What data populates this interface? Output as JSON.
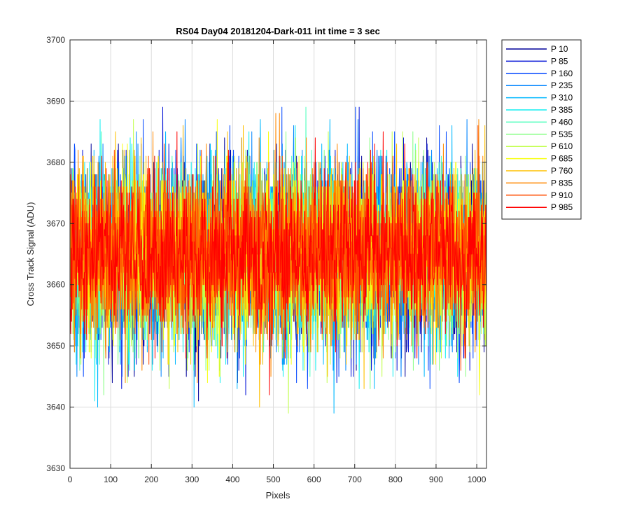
{
  "chart_data": {
    "type": "line",
    "title": "RS04 Day04 20181204-Dark-011 int time = 3 sec",
    "xlabel": "Pixels",
    "ylabel": "Cross Track Signal (ADU)",
    "xlim": [
      0,
      1024
    ],
    "ylim": [
      3630,
      3700
    ],
    "xticks": [
      0,
      100,
      200,
      300,
      400,
      500,
      600,
      700,
      800,
      900,
      1000
    ],
    "yticks": [
      3630,
      3640,
      3650,
      3660,
      3670,
      3680,
      3690,
      3700
    ],
    "grid": true,
    "legend_position": "outside-right",
    "x_points": 1024,
    "series": [
      {
        "name": "P 10",
        "color": "#00009a",
        "mean": 3665,
        "sd": 7.5
      },
      {
        "name": "P 85",
        "color": "#0010d6",
        "mean": 3665,
        "sd": 7.5
      },
      {
        "name": "P 160",
        "color": "#0046ff",
        "mean": 3665,
        "sd": 7.5
      },
      {
        "name": "P 235",
        "color": "#0084ff",
        "mean": 3665,
        "sd": 7.5
      },
      {
        "name": "P 310",
        "color": "#00b8ff",
        "mean": 3665,
        "sd": 7.5
      },
      {
        "name": "P 385",
        "color": "#12eef0",
        "mean": 3665,
        "sd": 7.5
      },
      {
        "name": "P 460",
        "color": "#4dffbc",
        "mean": 3665,
        "sd": 7.0
      },
      {
        "name": "P 535",
        "color": "#87ff84",
        "mean": 3665,
        "sd": 7.0
      },
      {
        "name": "P 610",
        "color": "#c1ff4c",
        "mean": 3665,
        "sd": 7.0
      },
      {
        "name": "P 685",
        "color": "#f8ff12",
        "mean": 3665,
        "sd": 7.0
      },
      {
        "name": "P 760",
        "color": "#ffc000",
        "mean": 3665,
        "sd": 7.0
      },
      {
        "name": "P 835",
        "color": "#ff8800",
        "mean": 3665,
        "sd": 7.0
      },
      {
        "name": "P 910",
        "color": "#ff4c00",
        "mean": 3665,
        "sd": 6.5
      },
      {
        "name": "P 985",
        "color": "#ff0000",
        "mean": 3665,
        "sd": 6.5
      }
    ]
  }
}
